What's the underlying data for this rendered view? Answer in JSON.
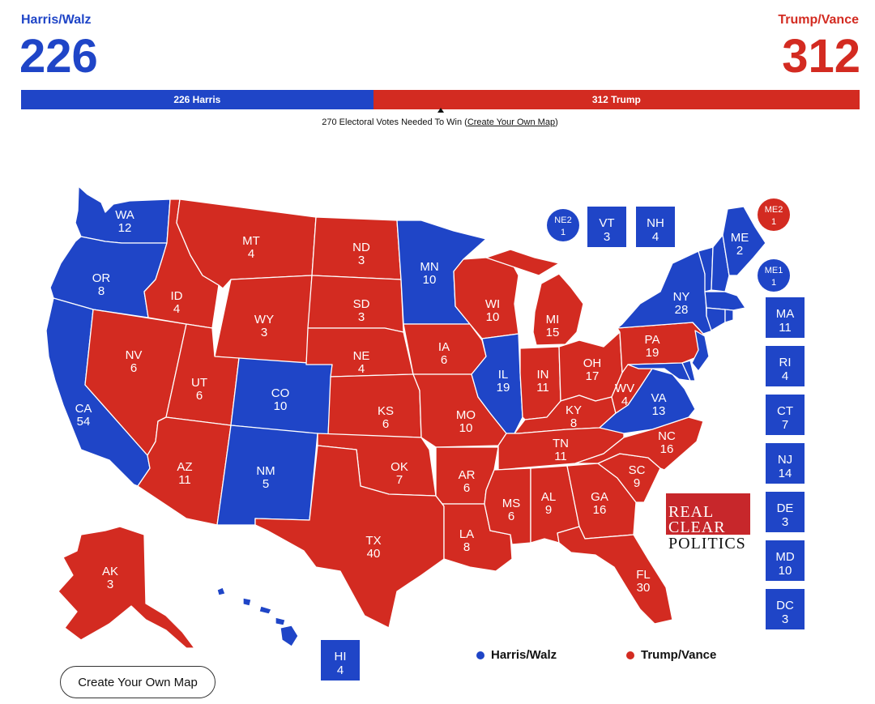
{
  "header": {
    "dem": {
      "name": "Harris/Walz",
      "votes": "226",
      "bar_label": "226 Harris",
      "color": "#1f45c7",
      "share": 0.42
    },
    "rep": {
      "name": "Trump/Vance",
      "votes": "312",
      "bar_label": "312 Trump",
      "color": "#d32b21",
      "share": 0.58
    },
    "needed_prefix": "270 Electoral Votes Needed To Win (",
    "needed_link": "Create Your Own Map",
    "needed_suffix": ")"
  },
  "states": {
    "WA": {
      "abbr": "WA",
      "ev": "12",
      "party": "D"
    },
    "OR": {
      "abbr": "OR",
      "ev": "8",
      "party": "D"
    },
    "CA": {
      "abbr": "CA",
      "ev": "54",
      "party": "D"
    },
    "NV": {
      "abbr": "NV",
      "ev": "6",
      "party": "R"
    },
    "ID": {
      "abbr": "ID",
      "ev": "4",
      "party": "R"
    },
    "MT": {
      "abbr": "MT",
      "ev": "4",
      "party": "R"
    },
    "WY": {
      "abbr": "WY",
      "ev": "3",
      "party": "R"
    },
    "UT": {
      "abbr": "UT",
      "ev": "6",
      "party": "R"
    },
    "AZ": {
      "abbr": "AZ",
      "ev": "11",
      "party": "R"
    },
    "CO": {
      "abbr": "CO",
      "ev": "10",
      "party": "D"
    },
    "NM": {
      "abbr": "NM",
      "ev": "5",
      "party": "D"
    },
    "ND": {
      "abbr": "ND",
      "ev": "3",
      "party": "R"
    },
    "SD": {
      "abbr": "SD",
      "ev": "3",
      "party": "R"
    },
    "NE": {
      "abbr": "NE",
      "ev": "4",
      "party": "R"
    },
    "KS": {
      "abbr": "KS",
      "ev": "6",
      "party": "R"
    },
    "OK": {
      "abbr": "OK",
      "ev": "7",
      "party": "R"
    },
    "TX": {
      "abbr": "TX",
      "ev": "40",
      "party": "R"
    },
    "MN": {
      "abbr": "MN",
      "ev": "10",
      "party": "D"
    },
    "IA": {
      "abbr": "IA",
      "ev": "6",
      "party": "R"
    },
    "MO": {
      "abbr": "MO",
      "ev": "10",
      "party": "R"
    },
    "AR": {
      "abbr": "AR",
      "ev": "6",
      "party": "R"
    },
    "LA": {
      "abbr": "LA",
      "ev": "8",
      "party": "R"
    },
    "WI": {
      "abbr": "WI",
      "ev": "10",
      "party": "R"
    },
    "IL": {
      "abbr": "IL",
      "ev": "19",
      "party": "D"
    },
    "MI": {
      "abbr": "MI",
      "ev": "15",
      "party": "R"
    },
    "IN": {
      "abbr": "IN",
      "ev": "11",
      "party": "R"
    },
    "OH": {
      "abbr": "OH",
      "ev": "17",
      "party": "R"
    },
    "KY": {
      "abbr": "KY",
      "ev": "8",
      "party": "R"
    },
    "TN": {
      "abbr": "TN",
      "ev": "11",
      "party": "R"
    },
    "MS": {
      "abbr": "MS",
      "ev": "6",
      "party": "R"
    },
    "AL": {
      "abbr": "AL",
      "ev": "9",
      "party": "R"
    },
    "GA": {
      "abbr": "GA",
      "ev": "16",
      "party": "R"
    },
    "FL": {
      "abbr": "FL",
      "ev": "30",
      "party": "R"
    },
    "SC": {
      "abbr": "SC",
      "ev": "9",
      "party": "R"
    },
    "NC": {
      "abbr": "NC",
      "ev": "16",
      "party": "R"
    },
    "VA": {
      "abbr": "VA",
      "ev": "13",
      "party": "D"
    },
    "WV": {
      "abbr": "WV",
      "ev": "4",
      "party": "R"
    },
    "PA": {
      "abbr": "PA",
      "ev": "19",
      "party": "R"
    },
    "NY": {
      "abbr": "NY",
      "ev": "28",
      "party": "D"
    },
    "ME": {
      "abbr": "ME",
      "ev": "2",
      "party": "D"
    },
    "AK": {
      "abbr": "AK",
      "ev": "3",
      "party": "R"
    },
    "HI": {
      "abbr": "HI",
      "ev": "4",
      "party": "D"
    },
    "VT": {
      "abbr": "VT",
      "ev": "3",
      "party": "D"
    },
    "NH": {
      "abbr": "NH",
      "ev": "4",
      "party": "D"
    },
    "MA": {
      "abbr": "MA",
      "ev": "11",
      "party": "D"
    },
    "RI": {
      "abbr": "RI",
      "ev": "4",
      "party": "D"
    },
    "CT": {
      "abbr": "CT",
      "ev": "7",
      "party": "D"
    },
    "NJ": {
      "abbr": "NJ",
      "ev": "14",
      "party": "D"
    },
    "DE": {
      "abbr": "DE",
      "ev": "3",
      "party": "D"
    },
    "MD": {
      "abbr": "MD",
      "ev": "10",
      "party": "D"
    },
    "DC": {
      "abbr": "DC",
      "ev": "3",
      "party": "D"
    },
    "NE2": {
      "abbr": "NE2",
      "ev": "1",
      "party": "D"
    },
    "ME2": {
      "abbr": "ME2",
      "ev": "1",
      "party": "R"
    },
    "ME1": {
      "abbr": "ME1",
      "ev": "1",
      "party": "D"
    }
  },
  "legend": {
    "dem": "Harris/Walz",
    "rep": "Trump/Vance"
  },
  "logo": {
    "line1": "REAL",
    "line2": "CLEAR",
    "line3": "POLITICS"
  },
  "button": {
    "label": "Create Your Own Map"
  }
}
